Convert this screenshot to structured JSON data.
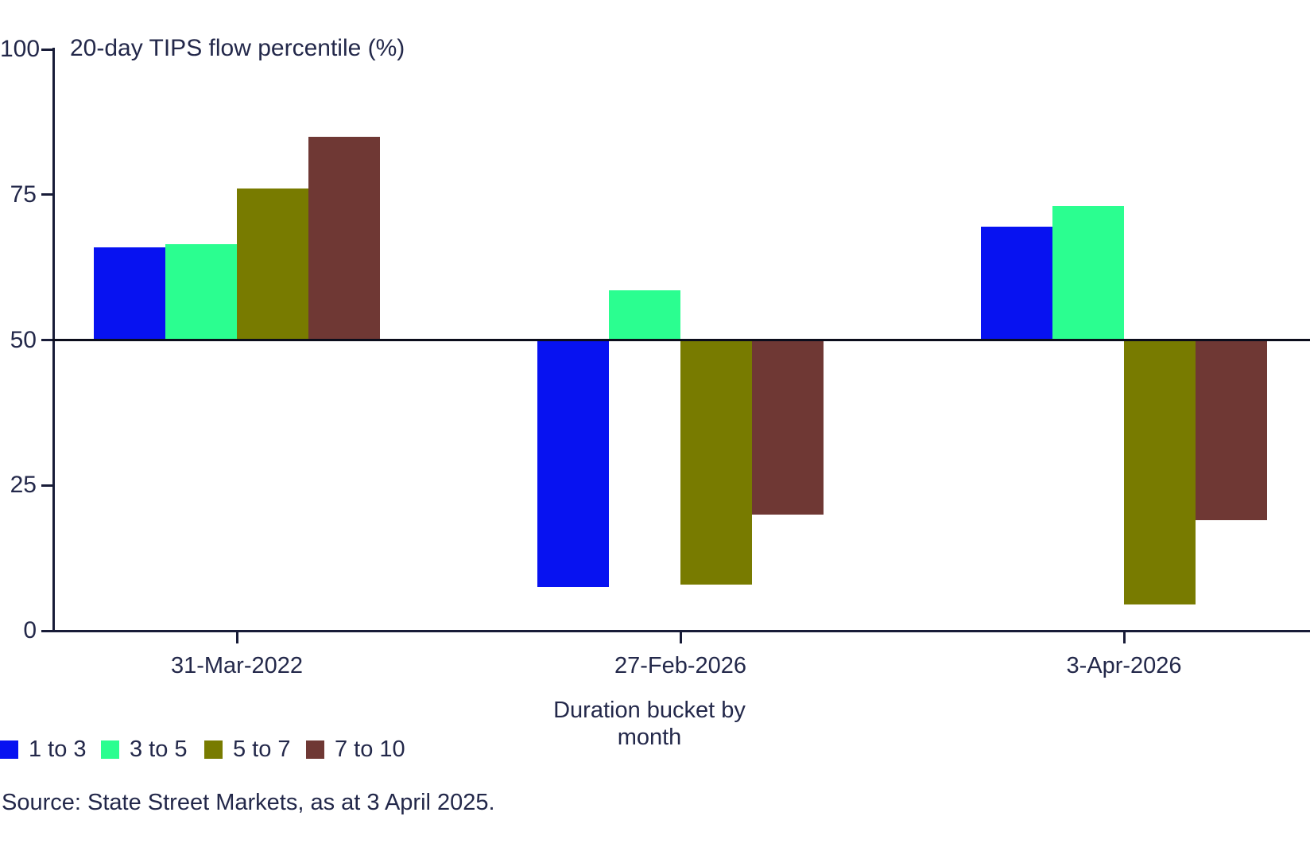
{
  "title": "20-day TIPS flow percentile (%)",
  "xlabel": "Duration bucket by month",
  "source": "Source: State Street Markets, as at 3 April 2025.",
  "colors": {
    "text": "#23284a",
    "axis": "#181c38",
    "baseline": "#0b0d1c",
    "series_1_to_3": "#0712f1",
    "series_3_to_5": "#2bfe90",
    "series_5_to_7": "#787b00",
    "series_7_to_10": "#6f3834"
  },
  "chart_data": {
    "type": "bar",
    "title": "20-day TIPS flow percentile (%)",
    "xlabel": "Duration bucket by month",
    "ylabel": "",
    "categories": [
      "31-Mar-2022",
      "27-Feb-2026",
      "3-Apr-2026"
    ],
    "series": [
      {
        "name": "1 to 3",
        "color": "#0712f1",
        "values": [
          66,
          7.5,
          69.5
        ]
      },
      {
        "name": "3 to 5",
        "color": "#2bfe90",
        "values": [
          66.5,
          58.5,
          73
        ]
      },
      {
        "name": "5 to 7",
        "color": "#787b00",
        "values": [
          76,
          8,
          4.5
        ]
      },
      {
        "name": "7 to 10",
        "color": "#6f3834",
        "values": [
          85,
          20,
          19
        ]
      }
    ],
    "baseline": 50,
    "ylim": [
      0,
      100
    ],
    "yticks": [
      0,
      25,
      50,
      75,
      100
    ],
    "grid": false,
    "legend_position": "bottom-left"
  },
  "legend": {
    "items": [
      "1 to 3",
      "3 to 5",
      "5 to 7",
      "7 to 10"
    ]
  }
}
